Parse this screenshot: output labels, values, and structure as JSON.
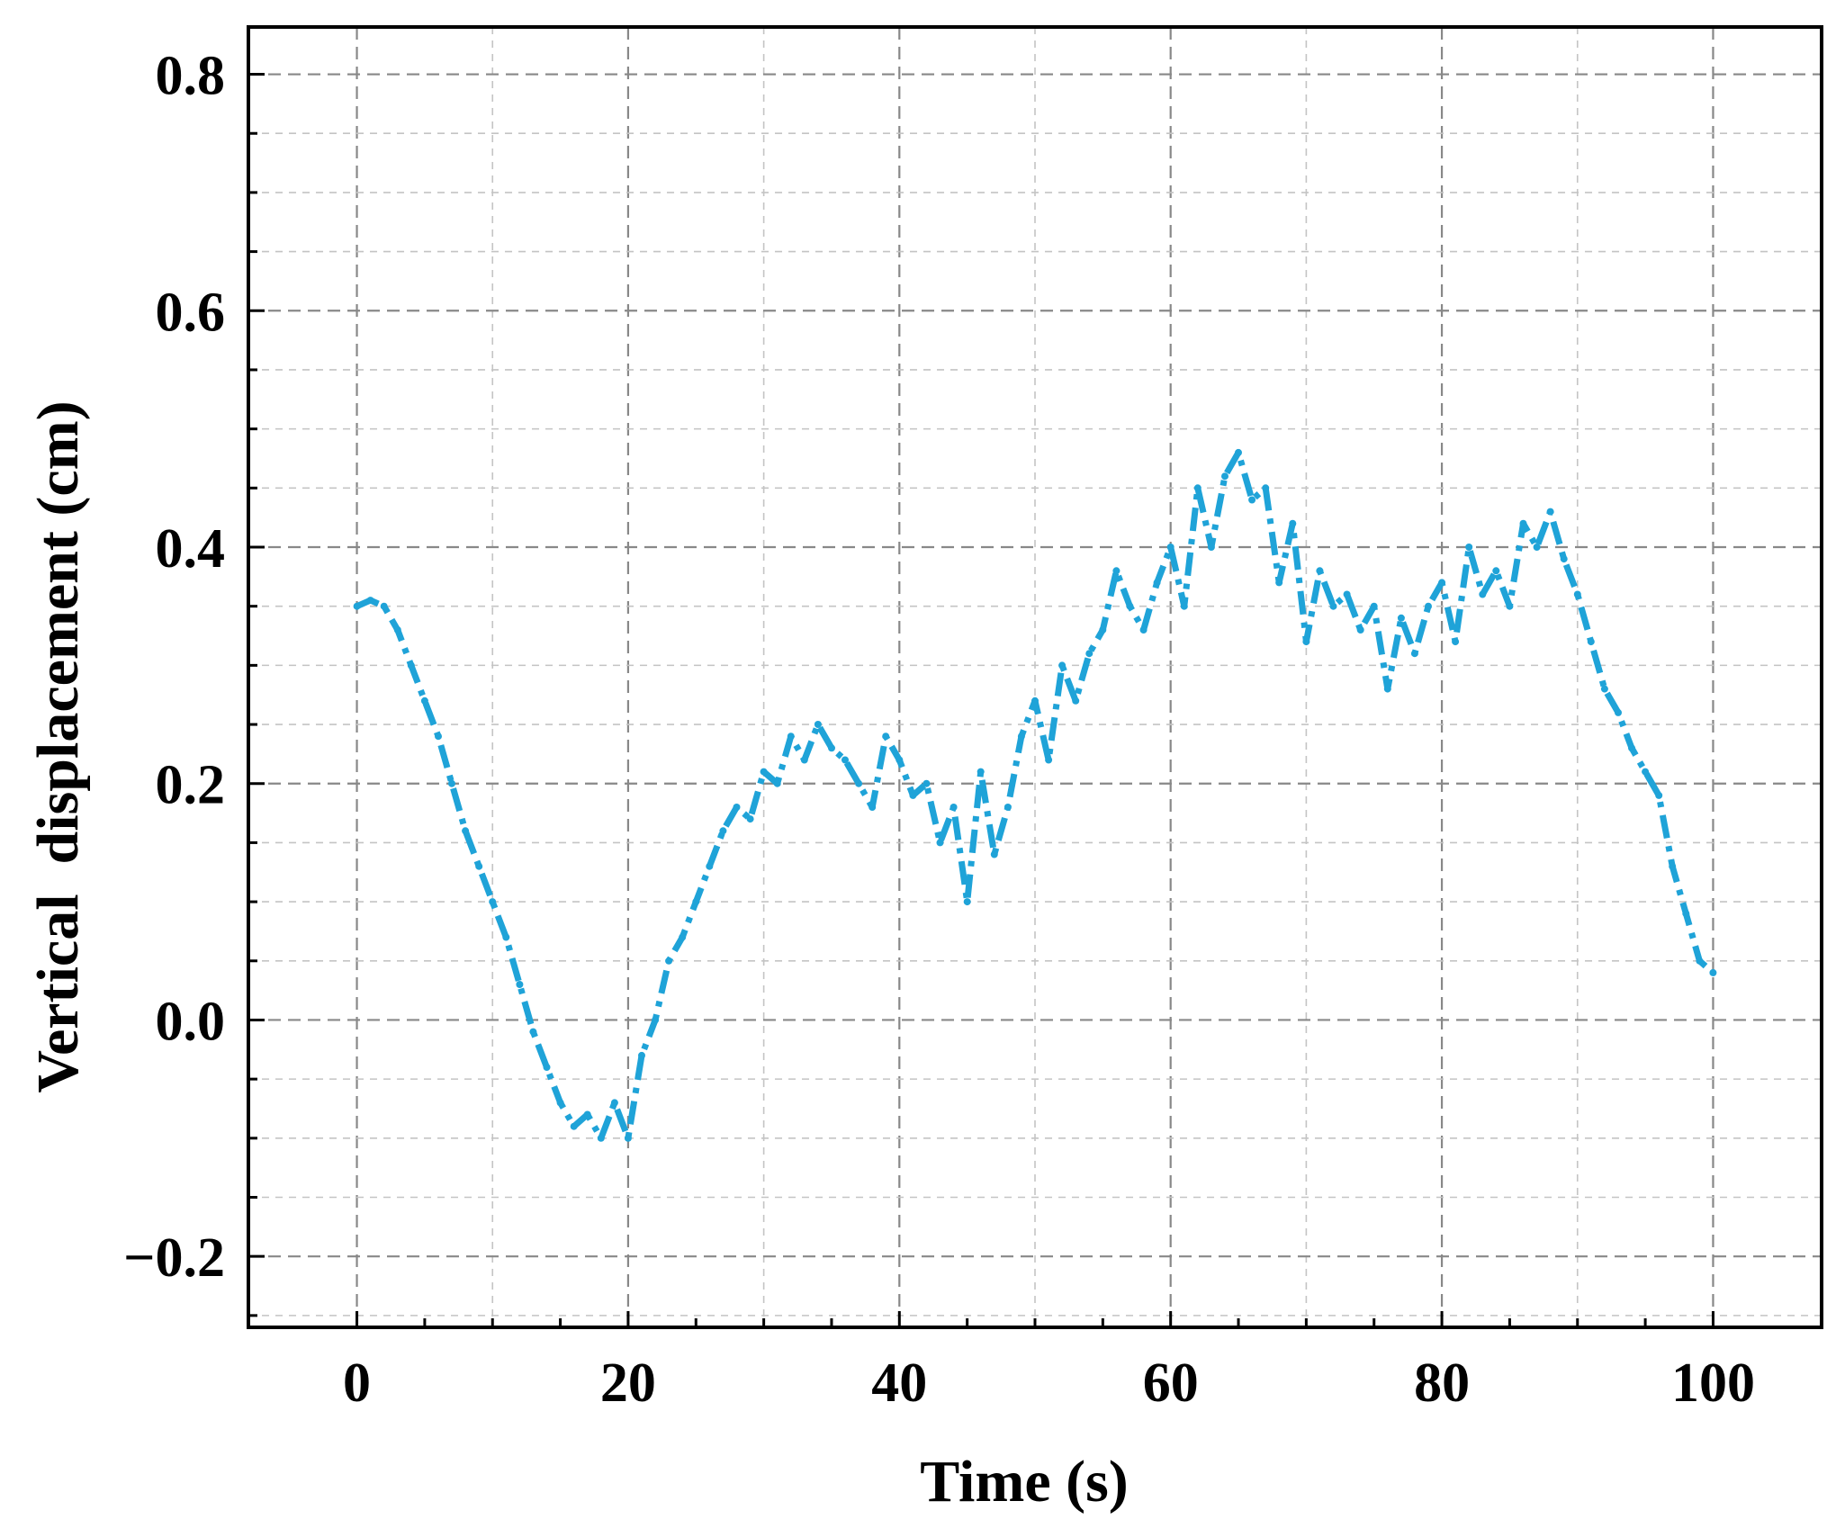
{
  "chart_data": {
    "type": "line",
    "title": "",
    "xlabel": "Time (s)",
    "ylabel": "Vertical  displacement (cm)",
    "xlim": [
      -8,
      108
    ],
    "ylim": [
      -0.26,
      0.84
    ],
    "xticks": [
      0,
      20,
      40,
      60,
      80,
      100
    ],
    "xtick_labels": [
      "0",
      "20",
      "40",
      "60",
      "80",
      "100"
    ],
    "yticks": [
      -0.2,
      0.0,
      0.2,
      0.4,
      0.6,
      0.8
    ],
    "ytick_labels": [
      "−0.2",
      "0.0",
      "0.2",
      "0.4",
      "0.6",
      "0.8"
    ],
    "grid": true,
    "grid_style": "dashed, major and minor",
    "line_style": "dash-dot",
    "series": [
      {
        "name": "",
        "color": "#1fa3d8",
        "x": [
          0,
          1,
          2,
          3,
          4,
          5,
          6,
          7,
          8,
          9,
          10,
          11,
          12,
          13,
          14,
          15,
          16,
          17,
          18,
          19,
          20,
          21,
          22,
          23,
          24,
          25,
          26,
          27,
          28,
          29,
          30,
          31,
          32,
          33,
          34,
          35,
          36,
          37,
          38,
          39,
          40,
          41,
          42,
          43,
          44,
          45,
          46,
          47,
          48,
          49,
          50,
          51,
          52,
          53,
          54,
          55,
          56,
          57,
          58,
          59,
          60,
          61,
          62,
          63,
          64,
          65,
          66,
          67,
          68,
          69,
          70,
          71,
          72,
          73,
          74,
          75,
          76,
          77,
          78,
          79,
          80,
          81,
          82,
          83,
          84,
          85,
          86,
          87,
          88,
          89,
          90,
          91,
          92,
          93,
          94,
          95,
          96,
          97,
          98,
          99,
          100
        ],
        "y": [
          0.35,
          0.355,
          0.35,
          0.33,
          0.3,
          0.27,
          0.24,
          0.2,
          0.16,
          0.13,
          0.1,
          0.07,
          0.03,
          -0.01,
          -0.04,
          -0.07,
          -0.09,
          -0.08,
          -0.1,
          -0.07,
          -0.1,
          -0.03,
          0.0,
          0.05,
          0.07,
          0.1,
          0.13,
          0.16,
          0.18,
          0.17,
          0.21,
          0.2,
          0.24,
          0.22,
          0.25,
          0.23,
          0.22,
          0.2,
          0.18,
          0.24,
          0.22,
          0.19,
          0.2,
          0.15,
          0.18,
          0.1,
          0.21,
          0.14,
          0.18,
          0.24,
          0.27,
          0.22,
          0.3,
          0.27,
          0.31,
          0.33,
          0.38,
          0.35,
          0.33,
          0.37,
          0.4,
          0.35,
          0.45,
          0.4,
          0.46,
          0.48,
          0.44,
          0.45,
          0.37,
          0.42,
          0.32,
          0.38,
          0.35,
          0.36,
          0.33,
          0.35,
          0.28,
          0.34,
          0.31,
          0.35,
          0.37,
          0.32,
          0.4,
          0.36,
          0.38,
          0.35,
          0.42,
          0.4,
          0.43,
          0.39,
          0.36,
          0.32,
          0.28,
          0.26,
          0.23,
          0.21,
          0.19,
          0.13,
          0.09,
          0.05,
          0.04
        ]
      }
    ]
  }
}
